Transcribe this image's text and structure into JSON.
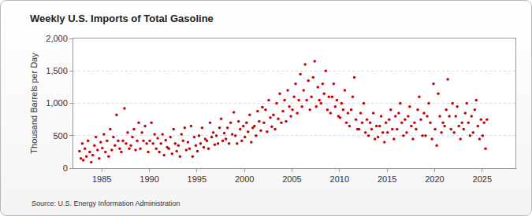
{
  "chart_data": {
    "type": "scatter",
    "title": "Weekly U.S. Imports of Total Gasoline",
    "y_label": "Thousand Barrels per Day",
    "source": "Source: U.S. Energy Information Administration",
    "color": "#cc0000",
    "marker": "circle",
    "grid": true,
    "xlim": [
      1982,
      2028.5
    ],
    "xticks": [
      1985,
      1990,
      1995,
      2000,
      2005,
      2010,
      2015,
      2020,
      2025
    ],
    "ylim": [
      0,
      2000
    ],
    "yticks": [
      0,
      500,
      {
        "value": 1000,
        "label": "1,000"
      },
      {
        "value": 1500,
        "label": "1,500"
      },
      {
        "value": 2000,
        "label": "2,000"
      }
    ],
    "x": [
      1982.65,
      1982.8,
      1982.95,
      1983.05,
      1983.22,
      1983.38,
      1983.55,
      1983.72,
      1983.88,
      1984.05,
      1984.22,
      1984.38,
      1984.55,
      1984.72,
      1984.88,
      1985.05,
      1985.22,
      1985.38,
      1985.55,
      1985.72,
      1985.88,
      1986.05,
      1986.22,
      1986.38,
      1986.55,
      1986.72,
      1986.88,
      1987.05,
      1987.22,
      1987.38,
      1987.55,
      1987.72,
      1987.88,
      1988.05,
      1988.22,
      1988.38,
      1988.55,
      1988.72,
      1988.88,
      1989.05,
      1989.22,
      1989.38,
      1989.55,
      1989.72,
      1989.88,
      1990.05,
      1990.22,
      1990.38,
      1990.55,
      1990.72,
      1990.88,
      1991.05,
      1991.22,
      1991.38,
      1991.55,
      1991.72,
      1991.88,
      1992.05,
      1992.22,
      1992.38,
      1992.55,
      1992.72,
      1992.88,
      1993.05,
      1993.22,
      1993.38,
      1993.55,
      1993.72,
      1993.88,
      1994.05,
      1994.22,
      1994.38,
      1994.55,
      1994.72,
      1994.88,
      1995.05,
      1995.22,
      1995.38,
      1995.55,
      1995.72,
      1995.88,
      1996.05,
      1996.22,
      1996.38,
      1996.55,
      1996.72,
      1996.88,
      1997.05,
      1997.22,
      1997.38,
      1997.55,
      1997.72,
      1997.88,
      1998.05,
      1998.22,
      1998.38,
      1998.55,
      1998.72,
      1998.88,
      1999.05,
      1999.22,
      1999.38,
      1999.55,
      1999.72,
      1999.88,
      2000.05,
      2000.22,
      2000.38,
      2000.55,
      2000.72,
      2000.88,
      2001.05,
      2001.22,
      2001.38,
      2001.55,
      2001.72,
      2001.88,
      2002.05,
      2002.22,
      2002.38,
      2002.55,
      2002.72,
      2002.88,
      2003.05,
      2003.22,
      2003.38,
      2003.55,
      2003.72,
      2003.88,
      2004.05,
      2004.22,
      2004.38,
      2004.55,
      2004.72,
      2004.88,
      2005.05,
      2005.22,
      2005.38,
      2005.55,
      2005.72,
      2005.88,
      2006.05,
      2006.22,
      2006.38,
      2006.55,
      2006.72,
      2006.88,
      2007.05,
      2007.22,
      2007.38,
      2007.55,
      2007.72,
      2007.88,
      2008.05,
      2008.22,
      2008.38,
      2008.55,
      2008.72,
      2008.88,
      2009.05,
      2009.22,
      2009.38,
      2009.55,
      2009.72,
      2009.88,
      2010.05,
      2010.22,
      2010.38,
      2010.55,
      2010.72,
      2010.88,
      2011.05,
      2011.22,
      2011.38,
      2011.55,
      2011.72,
      2011.88,
      2012.05,
      2012.22,
      2012.38,
      2012.55,
      2012.72,
      2012.88,
      2013.05,
      2013.22,
      2013.38,
      2013.55,
      2013.72,
      2013.88,
      2014.05,
      2014.22,
      2014.38,
      2014.55,
      2014.72,
      2014.88,
      2015.05,
      2015.22,
      2015.38,
      2015.55,
      2015.72,
      2015.88,
      2016.05,
      2016.22,
      2016.38,
      2016.55,
      2016.72,
      2016.88,
      2017.05,
      2017.22,
      2017.38,
      2017.55,
      2017.72,
      2017.88,
      2018.05,
      2018.22,
      2018.38,
      2018.55,
      2018.72,
      2018.88,
      2019.05,
      2019.22,
      2019.38,
      2019.55,
      2019.72,
      2019.88,
      2020.05,
      2020.22,
      2020.38,
      2020.55,
      2020.72,
      2020.88,
      2021.05,
      2021.22,
      2021.38,
      2021.55,
      2021.72,
      2021.88,
      2022.05,
      2022.22,
      2022.38,
      2022.55,
      2022.72,
      2022.88,
      2023.05,
      2023.22,
      2023.38,
      2023.55,
      2023.72,
      2023.88,
      2024.05,
      2024.22,
      2024.38,
      2024.55,
      2024.72,
      2024.88,
      2025.05,
      2025.2,
      2025.35,
      2025.5
    ],
    "values": [
      260,
      150,
      380,
      120,
      300,
      180,
      420,
      250,
      90,
      200,
      350,
      480,
      280,
      150,
      400,
      310,
      520,
      250,
      420,
      180,
      600,
      280,
      480,
      350,
      820,
      420,
      300,
      250,
      420,
      920,
      380,
      550,
      300,
      350,
      480,
      600,
      280,
      420,
      700,
      300,
      550,
      420,
      650,
      380,
      250,
      420,
      700,
      380,
      520,
      300,
      460,
      250,
      380,
      520,
      200,
      430,
      320,
      300,
      480,
      220,
      600,
      380,
      260,
      350,
      180,
      520,
      420,
      620,
      280,
      400,
      300,
      650,
      180,
      480,
      350,
      260,
      500,
      380,
      620,
      320,
      450,
      420,
      300,
      700,
      480,
      550,
      360,
      500,
      380,
      620,
      760,
      420,
      540,
      450,
      620,
      380,
      700,
      520,
      860,
      500,
      380,
      720,
      600,
      420,
      650,
      480,
      700,
      560,
      820,
      400,
      620,
      650,
      500,
      880,
      720,
      580,
      940,
      700,
      900,
      560,
      1050,
      780,
      640,
      820,
      600,
      1000,
      760,
      1150,
      700,
      880,
      1050,
      720,
      1200,
      950,
      800,
      900,
      1100,
      1300,
      850,
      1050,
      1450,
      950,
      1200,
      1600,
      1050,
      1350,
      900,
      1100,
      1400,
      1650,
      950,
      1250,
      1050,
      1000,
      1300,
      1150,
      1500,
      900,
      1100,
      850,
      1100,
      1300,
      950,
      1050,
      800,
      780,
      1000,
      900,
      1200,
      700,
      850,
      650,
      900,
      1100,
      1400,
      750,
      600,
      600,
      850,
      700,
      1000,
      550,
      750,
      500,
      700,
      600,
      850,
      450,
      650,
      480,
      650,
      800,
      550,
      400,
      700,
      550,
      750,
      900,
      600,
      450,
      800,
      600,
      850,
      1000,
      700,
      500,
      750,
      550,
      800,
      950,
      650,
      450,
      700,
      600,
      900,
      1100,
      750,
      500,
      850,
      500,
      800,
      1000,
      700,
      450,
      1300,
      600,
      350,
      1150,
      800,
      550,
      700,
      650,
      900,
      1370,
      800,
      600,
      1000,
      550,
      800,
      950,
      650,
      450,
      700,
      600,
      850,
      1000,
      700,
      500,
      800,
      550,
      900,
      1050,
      650,
      450,
      750,
      500,
      700,
      300,
      750
    ]
  }
}
